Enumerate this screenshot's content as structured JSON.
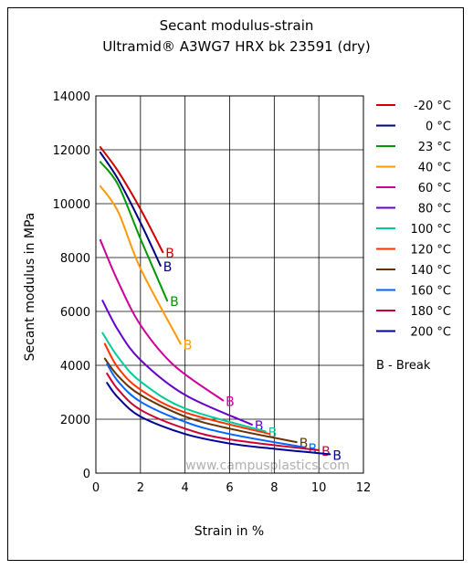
{
  "chart_data": {
    "type": "line",
    "title": "Secant modulus-strain",
    "subtitle": "Ultramid® A3WG7 HRX bk 23591 (dry)",
    "xlabel": "Strain in %",
    "ylabel": "Secant modulus in MPa",
    "xlim": [
      0,
      12
    ],
    "ylim": [
      0,
      14000
    ],
    "x_ticks": [
      "0",
      "2",
      "4",
      "6",
      "8",
      "10",
      "12"
    ],
    "y_ticks": [
      "0",
      "2000",
      "4000",
      "6000",
      "8000",
      "10000",
      "12000",
      "14000"
    ],
    "grid": true,
    "legend_position": "right",
    "break_marker": "B",
    "break_legend": "B - Break",
    "watermark": "www.campusplastics.com",
    "series": [
      {
        "name": "-20 °C",
        "color": "#cc0000",
        "points": [
          [
            0.2,
            12100
          ],
          [
            1.0,
            11200
          ],
          [
            2.0,
            9800
          ],
          [
            3.0,
            8200
          ]
        ],
        "break_label": "B"
      },
      {
        "name": "0 °C",
        "color": "#000080",
        "points": [
          [
            0.2,
            11900
          ],
          [
            1.0,
            10900
          ],
          [
            2.0,
            9300
          ],
          [
            2.9,
            7700
          ]
        ],
        "break_label": "B"
      },
      {
        "name": "23 °C",
        "color": "#009900",
        "points": [
          [
            0.2,
            11550
          ],
          [
            1.0,
            10700
          ],
          [
            2.0,
            8700
          ],
          [
            3.2,
            6400
          ]
        ],
        "break_label": "B"
      },
      {
        "name": "40 °C",
        "color": "#ff9900",
        "points": [
          [
            0.2,
            10650
          ],
          [
            1.0,
            9700
          ],
          [
            2.0,
            7600
          ],
          [
            3.8,
            4800
          ]
        ],
        "break_label": "B"
      },
      {
        "name": "60 °C",
        "color": "#cc0099",
        "points": [
          [
            0.2,
            8650
          ],
          [
            1.0,
            7100
          ],
          [
            2.0,
            5500
          ],
          [
            3.5,
            4000
          ],
          [
            5.7,
            2700
          ]
        ],
        "break_label": "B"
      },
      {
        "name": "80 °C",
        "color": "#6600cc",
        "points": [
          [
            0.3,
            6400
          ],
          [
            1.0,
            5300
          ],
          [
            2.0,
            4200
          ],
          [
            4.0,
            2900
          ],
          [
            7.0,
            1800
          ]
        ],
        "break_label": "B"
      },
      {
        "name": "100 °C",
        "color": "#00cc99",
        "points": [
          [
            0.3,
            5200
          ],
          [
            1.0,
            4300
          ],
          [
            2.0,
            3400
          ],
          [
            4.0,
            2400
          ],
          [
            7.6,
            1550
          ]
        ],
        "break_label": "B"
      },
      {
        "name": "120 °C",
        "color": "#ff3300",
        "points": [
          [
            0.4,
            4800
          ],
          [
            1.0,
            3900
          ],
          [
            2.0,
            3100
          ],
          [
            4.0,
            2250
          ],
          [
            7.8,
            1450
          ]
        ],
        "break_label": ""
      },
      {
        "name": "140 °C",
        "color": "#663300",
        "points": [
          [
            0.4,
            4250
          ],
          [
            1.0,
            3600
          ],
          [
            2.0,
            2900
          ],
          [
            4.0,
            2100
          ],
          [
            6.0,
            1650
          ],
          [
            9.0,
            1150
          ]
        ],
        "break_label": "B"
      },
      {
        "name": "160 °C",
        "color": "#0066ff",
        "points": [
          [
            0.5,
            4050
          ],
          [
            1.0,
            3400
          ],
          [
            2.0,
            2650
          ],
          [
            4.0,
            1900
          ],
          [
            6.0,
            1450
          ],
          [
            9.4,
            950
          ]
        ],
        "break_label": "B"
      },
      {
        "name": "180 °C",
        "color": "#cc0033",
        "points": [
          [
            0.5,
            3700
          ],
          [
            1.0,
            3100
          ],
          [
            2.0,
            2350
          ],
          [
            4.0,
            1650
          ],
          [
            6.0,
            1250
          ],
          [
            10.0,
            850
          ]
        ],
        "break_label": "B"
      },
      {
        "name": "200 °C",
        "color": "#000099",
        "points": [
          [
            0.5,
            3350
          ],
          [
            1.0,
            2800
          ],
          [
            2.0,
            2100
          ],
          [
            4.0,
            1450
          ],
          [
            6.0,
            1100
          ],
          [
            8.0,
            900
          ],
          [
            10.5,
            700
          ]
        ],
        "break_label": "B"
      }
    ]
  }
}
